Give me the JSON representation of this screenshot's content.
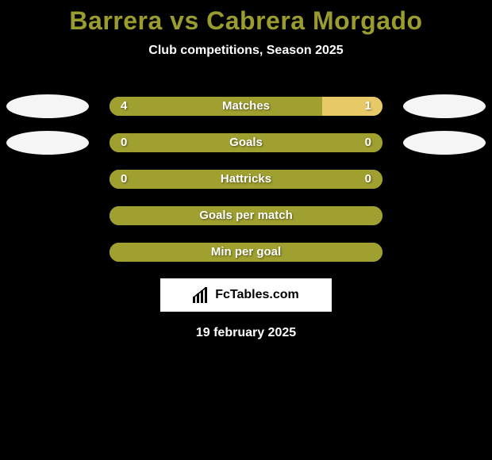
{
  "background_color": "#000000",
  "title": {
    "text": "Barrera vs Cabrera Morgado",
    "color": "#9a9c2f",
    "fontsize": 32
  },
  "subtitle": {
    "text": "Club competitions, Season 2025",
    "color": "#ffffff",
    "fontsize": 16
  },
  "ellipse_color": "#f5f5f5",
  "bar_style": {
    "track_color": "#c2c04a",
    "fill_olive": "#a0a030",
    "fill_right_accent": "#e8c968",
    "text_color": "#ffffff",
    "height": 24,
    "radius": 12,
    "fontsize": 15
  },
  "stats": [
    {
      "label": "Matches",
      "left_value": "4",
      "right_value": "1",
      "left_pct": 78,
      "right_pct": 22,
      "right_fill_key": "fill_right_accent",
      "show_ellipses": true
    },
    {
      "label": "Goals",
      "left_value": "0",
      "right_value": "0",
      "left_pct": 100,
      "right_pct": 0,
      "right_fill_key": "fill_olive",
      "show_ellipses": true
    },
    {
      "label": "Hattricks",
      "left_value": "0",
      "right_value": "0",
      "left_pct": 100,
      "right_pct": 0,
      "right_fill_key": "fill_olive",
      "show_ellipses": false
    },
    {
      "label": "Goals per match",
      "left_value": "",
      "right_value": "",
      "left_pct": 100,
      "right_pct": 0,
      "right_fill_key": "fill_olive",
      "show_ellipses": false
    },
    {
      "label": "Min per goal",
      "left_value": "",
      "right_value": "",
      "left_pct": 100,
      "right_pct": 0,
      "right_fill_key": "fill_olive",
      "show_ellipses": false
    }
  ],
  "logo": {
    "box_bg": "#ffffff",
    "text": "FcTables.com",
    "text_color": "#000000",
    "icon_color": "#000000"
  },
  "date": {
    "text": "19 february 2025",
    "color": "#ffffff",
    "fontsize": 16
  }
}
